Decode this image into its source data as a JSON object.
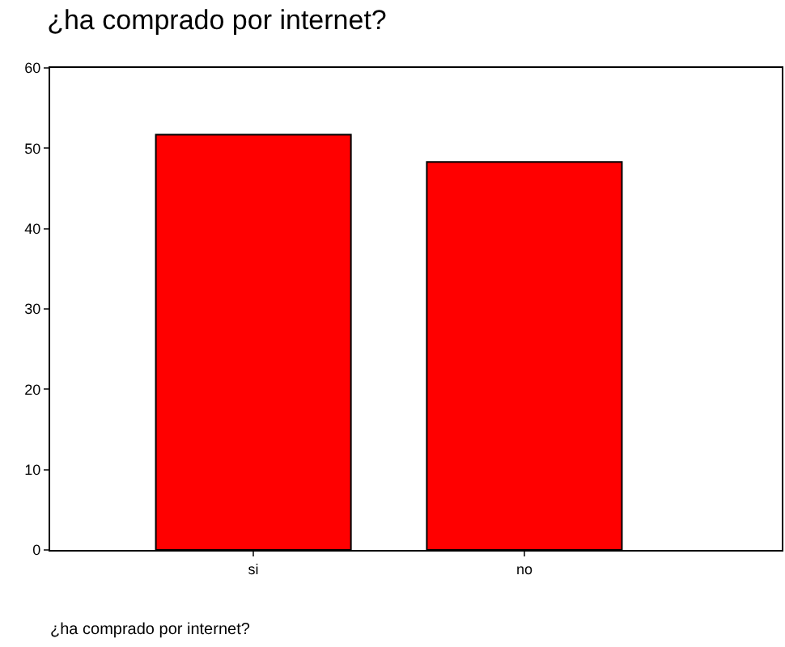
{
  "chart_data": {
    "type": "bar",
    "title": "¿ha comprado por internet?",
    "xlabel": "¿ha comprado por internet?",
    "categories": [
      "si",
      "no"
    ],
    "values": [
      51.7,
      48.3
    ],
    "color": "#ff0000",
    "ylim": [
      0,
      60
    ],
    "yticks": [
      0,
      10,
      20,
      30,
      40,
      50,
      60
    ]
  }
}
